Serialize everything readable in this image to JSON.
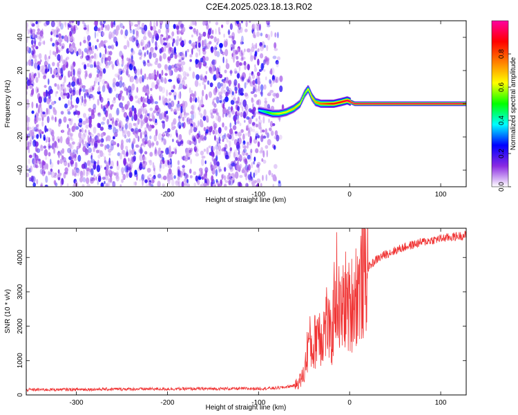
{
  "title": "C2E4.2025.023.18.13.R02",
  "chart_data": [
    {
      "type": "heatmap",
      "title": "",
      "xlabel": "Height of straight line (km)",
      "ylabel": "Frequency (Hz)",
      "xlim": [
        -355,
        128
      ],
      "ylim": [
        -50,
        50
      ],
      "xticks": [
        -300,
        -200,
        -100,
        0,
        100
      ],
      "xtick_labels": [
        "-300",
        "-200",
        "-100",
        "0",
        "100"
      ],
      "yticks": [
        -40,
        -20,
        0,
        20,
        40
      ],
      "ytick_labels": [
        "-40",
        "-20",
        "0",
        "20",
        "40"
      ],
      "colorbar": {
        "label": "Normalized spectral amplitude",
        "range": [
          0,
          1
        ],
        "ticks": [
          0.0,
          0.2,
          0.4,
          0.6,
          0.8
        ],
        "tick_labels": [
          "0.0",
          "0.2",
          "0.4",
          "0.6",
          "0.8"
        ],
        "colormap": [
          "#ffffff",
          "#8a2be2",
          "#0000ff",
          "#00ffff",
          "#00ff00",
          "#ffff00",
          "#ff8000",
          "#ff0000",
          "#ff00a0"
        ]
      },
      "noise_region": {
        "x_range": [
          -355,
          -75
        ],
        "freq_range": [
          -50,
          50
        ],
        "amplitude": [
          0.05,
          0.25
        ]
      },
      "signal_track": {
        "x": [
          -100,
          -92,
          -85,
          -78,
          -70,
          -62,
          -55,
          -50,
          -46,
          -42,
          -38,
          -32,
          -25,
          -18,
          -10,
          -3,
          5,
          20,
          60,
          128
        ],
        "frequency": [
          -4,
          -5,
          -6,
          -6,
          -5,
          -3,
          0,
          6,
          9,
          4,
          1,
          0,
          0,
          0,
          1,
          2,
          0,
          0,
          0,
          0
        ],
        "amplitude": [
          0.35,
          0.45,
          0.55,
          0.6,
          0.6,
          0.65,
          0.6,
          0.55,
          0.6,
          0.65,
          0.7,
          0.75,
          0.8,
          0.85,
          0.85,
          0.9,
          0.95,
          0.95,
          0.95,
          0.95
        ]
      }
    },
    {
      "type": "line",
      "title": "",
      "xlabel": "Height of straight line (km)",
      "ylabel": "SNR (10 * v/v)",
      "xlim": [
        -355,
        128
      ],
      "ylim": [
        0,
        4850
      ],
      "xticks": [
        -300,
        -200,
        -100,
        0,
        100
      ],
      "xtick_labels": [
        "-300",
        "-200",
        "-100",
        "0",
        "100"
      ],
      "yticks": [
        0,
        1000,
        2000,
        3000,
        4000
      ],
      "ytick_labels": [
        "0",
        "1000",
        "2000",
        "3000",
        "4000"
      ],
      "color": "#f03232",
      "series": [
        {
          "x": [
            -355,
            -300,
            -250,
            -200,
            -150,
            -100,
            -80,
            -70,
            -60,
            -55,
            -50,
            -45,
            -40,
            -35,
            -30,
            -25,
            -20,
            -15,
            -10,
            -5,
            0,
            5,
            10,
            15,
            20,
            30,
            40,
            60,
            80,
            100,
            128
          ],
          "y": [
            150,
            160,
            170,
            175,
            180,
            185,
            200,
            230,
            280,
            400,
            600,
            1600,
            1300,
            2000,
            1700,
            2200,
            1500,
            3300,
            2200,
            2800,
            2500,
            2900,
            3100,
            3400,
            3700,
            3950,
            4100,
            4300,
            4450,
            4550,
            4650
          ]
        }
      ]
    }
  ]
}
